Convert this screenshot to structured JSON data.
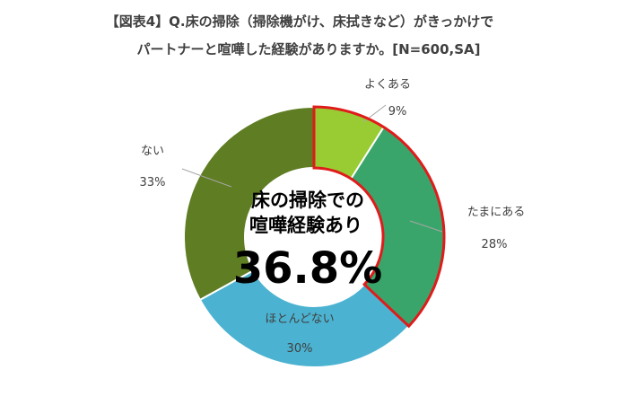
{
  "title_line1": "【図表4】Q.床の掃除（掃除機がけ、床拭きなど）がきっかけで",
  "title_line2": "パートナーと喧嘩した経験がありますか。[N=600,SA]",
  "center": {
    "line1": "床の掃除での",
    "line2": "喧嘩経験あり",
    "value": "36.8%"
  },
  "chart_data": {
    "type": "pie",
    "donut": true,
    "categories": [
      "よくある",
      "たまにある",
      "ほとんどない",
      "ない"
    ],
    "values": [
      9,
      28,
      30,
      33
    ],
    "labels": [
      "9%",
      "28%",
      "30%",
      "33%"
    ],
    "colors": [
      "#99cc33",
      "#3aa56b",
      "#4bb3d1",
      "#5f7d22"
    ],
    "highlight": {
      "categories": [
        "よくある",
        "たまにある"
      ],
      "outline_color": "#e01b1b"
    }
  }
}
